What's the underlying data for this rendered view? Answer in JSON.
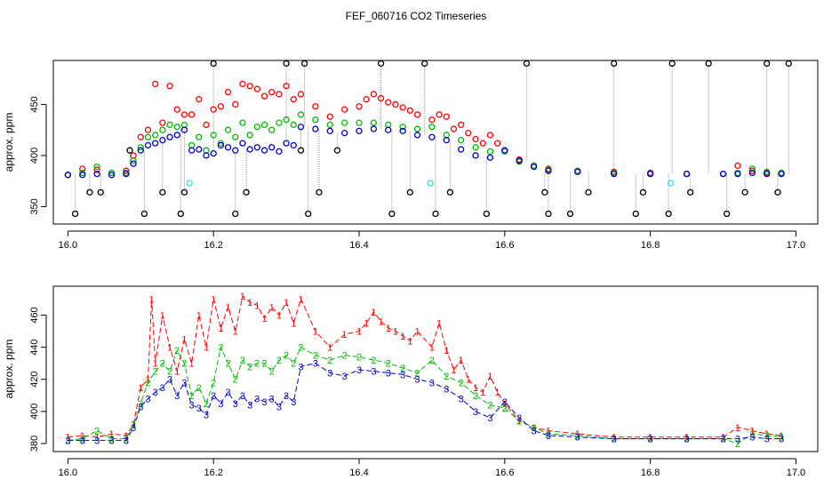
{
  "figure_title": "FEF_060716  CO2 Timeseries",
  "colors": {
    "series1": "#ff0000",
    "series2": "#00bb00",
    "series3": "#0000cc",
    "flagged": "#000000",
    "cyan": "#33dddd",
    "spike_line": "#999999"
  },
  "chart_data": [
    {
      "type": "scatter",
      "title": "",
      "xlabel": "",
      "ylabel": "approx. ppm",
      "xlim": [
        15.98,
        17.03
      ],
      "ylim": [
        333,
        493
      ],
      "xticks": [
        16.0,
        16.2,
        16.4,
        16.6,
        16.8,
        17.0
      ],
      "xtick_labels": [
        "16.0",
        "16.2",
        "16.4",
        "16.6",
        "16.8",
        "17.0"
      ],
      "yticks": [
        350,
        400,
        450
      ],
      "ytick_labels": [
        "350",
        "400",
        "450"
      ],
      "grid": false,
      "series": [
        {
          "key": "s1",
          "marker": "circle",
          "x": [
            16.0,
            16.02,
            16.04,
            16.06,
            16.08,
            16.09,
            16.1,
            16.11,
            16.12,
            16.13,
            16.14,
            16.15,
            16.16,
            16.17,
            16.18,
            16.19,
            16.2,
            16.21,
            16.22,
            16.23,
            16.24,
            16.25,
            16.26,
            16.27,
            16.28,
            16.29,
            16.3,
            16.31,
            16.32,
            16.34,
            16.36,
            16.38,
            16.4,
            16.41,
            16.42,
            16.43,
            16.44,
            16.45,
            16.46,
            16.47,
            16.48,
            16.5,
            16.51,
            16.52,
            16.53,
            16.54,
            16.55,
            16.56,
            16.57,
            16.58,
            16.59,
            16.6,
            16.62,
            16.64,
            16.66,
            16.7,
            16.75,
            16.8,
            16.85,
            16.9,
            16.92,
            16.94,
            16.96,
            16.98
          ],
          "y": [
            381,
            387,
            386,
            383,
            385,
            400,
            418,
            425,
            470,
            432,
            468,
            445,
            440,
            440,
            455,
            430,
            445,
            448,
            462,
            450,
            470,
            468,
            465,
            458,
            462,
            460,
            468,
            455,
            460,
            448,
            438,
            445,
            448,
            455,
            460,
            456,
            452,
            450,
            447,
            444,
            440,
            435,
            440,
            438,
            426,
            430,
            422,
            416,
            412,
            420,
            412,
            405,
            396,
            390,
            387,
            385,
            384,
            383,
            382,
            382,
            390,
            385,
            383,
            383
          ]
        },
        {
          "key": "s2",
          "marker": "circle",
          "x": [
            16.0,
            16.02,
            16.04,
            16.06,
            16.08,
            16.09,
            16.1,
            16.11,
            16.12,
            16.13,
            16.14,
            16.15,
            16.16,
            16.17,
            16.18,
            16.19,
            16.2,
            16.21,
            16.22,
            16.23,
            16.24,
            16.25,
            16.26,
            16.27,
            16.28,
            16.29,
            16.3,
            16.31,
            16.32,
            16.34,
            16.36,
            16.38,
            16.4,
            16.42,
            16.44,
            16.46,
            16.48,
            16.5,
            16.52,
            16.54,
            16.56,
            16.58,
            16.6,
            16.62,
            16.64,
            16.66,
            16.7,
            16.75,
            16.8,
            16.85,
            16.9,
            16.92,
            16.94,
            16.96,
            16.98
          ],
          "y": [
            381,
            383,
            389,
            383,
            383,
            395,
            408,
            418,
            420,
            425,
            430,
            428,
            430,
            410,
            418,
            405,
            420,
            412,
            425,
            418,
            432,
            420,
            428,
            430,
            425,
            432,
            435,
            430,
            440,
            435,
            430,
            432,
            432,
            432,
            430,
            428,
            426,
            428,
            420,
            415,
            408,
            404,
            404,
            394,
            390,
            386,
            385,
            383,
            382,
            382,
            382,
            383,
            387,
            384,
            383
          ]
        },
        {
          "key": "s3",
          "marker": "circle",
          "x": [
            16.0,
            16.02,
            16.04,
            16.06,
            16.08,
            16.09,
            16.1,
            16.11,
            16.12,
            16.13,
            16.14,
            16.15,
            16.16,
            16.17,
            16.18,
            16.19,
            16.2,
            16.21,
            16.22,
            16.23,
            16.24,
            16.25,
            16.26,
            16.27,
            16.28,
            16.29,
            16.3,
            16.31,
            16.32,
            16.34,
            16.36,
            16.38,
            16.4,
            16.42,
            16.44,
            16.46,
            16.48,
            16.5,
            16.52,
            16.54,
            16.56,
            16.58,
            16.6,
            16.62,
            16.64,
            16.66,
            16.7,
            16.75,
            16.8,
            16.85,
            16.9,
            16.92,
            16.94,
            16.96,
            16.98
          ],
          "y": [
            381,
            381,
            382,
            381,
            382,
            392,
            405,
            410,
            412,
            415,
            418,
            420,
            425,
            405,
            406,
            400,
            402,
            410,
            408,
            405,
            412,
            406,
            408,
            405,
            408,
            404,
            412,
            410,
            428,
            426,
            424,
            422,
            424,
            426,
            425,
            424,
            420,
            418,
            415,
            406,
            400,
            398,
            405,
            395,
            389,
            385,
            384,
            382,
            382,
            382,
            382,
            382,
            383,
            382,
            382
          ]
        },
        {
          "key": "flagged",
          "marker": "circle",
          "x": [
            16.01,
            16.03,
            16.045,
            16.085,
            16.105,
            16.13,
            16.155,
            16.16,
            16.2,
            16.23,
            16.245,
            16.3,
            16.32,
            16.325,
            16.33,
            16.345,
            16.37,
            16.43,
            16.445,
            16.47,
            16.49,
            16.505,
            16.525,
            16.575,
            16.63,
            16.655,
            16.66,
            16.69,
            16.715,
            16.75,
            16.78,
            16.79,
            16.825,
            16.83,
            16.855,
            16.88,
            16.905,
            16.93,
            16.96,
            16.975,
            16.99
          ],
          "y": [
            343,
            364,
            364,
            405,
            343,
            364,
            343,
            364,
            490,
            343,
            364,
            490,
            405,
            490,
            343,
            364,
            405,
            490,
            343,
            364,
            490,
            343,
            364,
            343,
            490,
            364,
            343,
            343,
            364,
            490,
            343,
            364,
            343,
            490,
            364,
            490,
            343,
            364,
            490,
            364,
            490
          ]
        },
        {
          "key": "cyan",
          "marker": "circle",
          "x": [
            16.167,
            16.498,
            16.828
          ],
          "y": [
            373,
            373,
            373
          ]
        }
      ]
    },
    {
      "type": "line",
      "title": "",
      "xlabel": "",
      "ylabel": "approx. ppm",
      "xlim": [
        15.98,
        17.03
      ],
      "ylim": [
        375,
        478
      ],
      "xticks": [
        16.0,
        16.2,
        16.4,
        16.6,
        16.8,
        17.0
      ],
      "xtick_labels": [
        "16.0",
        "16.2",
        "16.4",
        "16.6",
        "16.8",
        "17.0"
      ],
      "yticks": [
        380,
        400,
        420,
        440,
        460
      ],
      "ytick_labels": [
        "380",
        "400",
        "420",
        "440",
        "460"
      ],
      "grid": false,
      "series": [
        {
          "key": "s1",
          "name": "1",
          "x": [
            16.0,
            16.02,
            16.04,
            16.06,
            16.08,
            16.09,
            16.1,
            16.11,
            16.115,
            16.12,
            16.13,
            16.14,
            16.15,
            16.16,
            16.17,
            16.18,
            16.19,
            16.2,
            16.21,
            16.22,
            16.23,
            16.24,
            16.25,
            16.26,
            16.27,
            16.28,
            16.29,
            16.3,
            16.31,
            16.32,
            16.34,
            16.36,
            16.38,
            16.4,
            16.41,
            16.42,
            16.43,
            16.44,
            16.45,
            16.46,
            16.47,
            16.48,
            16.5,
            16.51,
            16.52,
            16.53,
            16.54,
            16.55,
            16.56,
            16.57,
            16.58,
            16.59,
            16.6,
            16.62,
            16.64,
            16.66,
            16.7,
            16.75,
            16.8,
            16.85,
            16.9,
            16.92,
            16.94,
            16.96,
            16.98
          ],
          "y": [
            384,
            385,
            384,
            386,
            385,
            392,
            415,
            420,
            470,
            430,
            460,
            440,
            425,
            445,
            430,
            460,
            440,
            470,
            452,
            465,
            450,
            472,
            468,
            466,
            458,
            465,
            460,
            468,
            455,
            470,
            450,
            440,
            448,
            450,
            455,
            462,
            456,
            452,
            450,
            447,
            444,
            450,
            440,
            455,
            438,
            426,
            432,
            420,
            415,
            412,
            422,
            412,
            405,
            394,
            390,
            388,
            386,
            384,
            384,
            384,
            384,
            390,
            388,
            386,
            385
          ]
        },
        {
          "key": "s2",
          "name": "2",
          "x": [
            16.0,
            16.02,
            16.04,
            16.06,
            16.08,
            16.09,
            16.1,
            16.11,
            16.12,
            16.13,
            16.14,
            16.15,
            16.16,
            16.17,
            16.18,
            16.19,
            16.2,
            16.21,
            16.22,
            16.23,
            16.24,
            16.25,
            16.26,
            16.27,
            16.28,
            16.29,
            16.3,
            16.31,
            16.32,
            16.34,
            16.36,
            16.38,
            16.4,
            16.42,
            16.44,
            16.46,
            16.48,
            16.5,
            16.52,
            16.54,
            16.56,
            16.58,
            16.6,
            16.62,
            16.64,
            16.66,
            16.7,
            16.75,
            16.8,
            16.85,
            16.9,
            16.92,
            16.94,
            16.96,
            16.98
          ],
          "y": [
            382,
            383,
            388,
            383,
            383,
            392,
            405,
            418,
            425,
            430,
            425,
            438,
            430,
            410,
            415,
            405,
            418,
            440,
            430,
            420,
            432,
            428,
            430,
            430,
            425,
            432,
            435,
            430,
            440,
            435,
            432,
            435,
            434,
            432,
            430,
            427,
            424,
            432,
            422,
            418,
            410,
            404,
            402,
            394,
            390,
            386,
            385,
            383,
            383,
            383,
            383,
            380,
            386,
            385,
            384
          ]
        },
        {
          "key": "s3",
          "name": "3",
          "x": [
            16.0,
            16.02,
            16.04,
            16.06,
            16.08,
            16.09,
            16.1,
            16.11,
            16.12,
            16.13,
            16.14,
            16.15,
            16.16,
            16.17,
            16.18,
            16.19,
            16.2,
            16.21,
            16.22,
            16.23,
            16.24,
            16.25,
            16.26,
            16.27,
            16.28,
            16.29,
            16.3,
            16.31,
            16.32,
            16.34,
            16.36,
            16.38,
            16.4,
            16.42,
            16.44,
            16.46,
            16.48,
            16.5,
            16.52,
            16.54,
            16.56,
            16.58,
            16.6,
            16.62,
            16.64,
            16.66,
            16.7,
            16.75,
            16.8,
            16.85,
            16.9,
            16.92,
            16.94,
            16.96,
            16.98
          ],
          "y": [
            382,
            382,
            382,
            382,
            382,
            390,
            403,
            408,
            412,
            415,
            420,
            410,
            418,
            404,
            402,
            398,
            410,
            405,
            412,
            405,
            410,
            404,
            408,
            406,
            408,
            403,
            410,
            406,
            428,
            430,
            424,
            422,
            426,
            425,
            424,
            423,
            420,
            418,
            414,
            408,
            400,
            396,
            406,
            396,
            388,
            385,
            384,
            383,
            383,
            383,
            383,
            383,
            384,
            383,
            383
          ]
        }
      ]
    }
  ]
}
